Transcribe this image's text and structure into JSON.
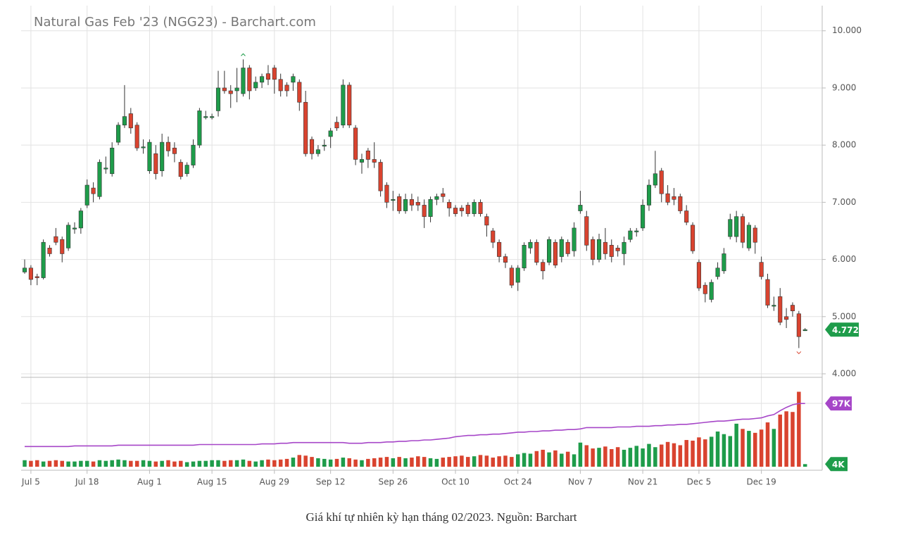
{
  "chart_data": {
    "type": "candlestick",
    "title": "Natural Gas Feb '23 (NGG23) - Barchart.com",
    "xlim": [
      -3.95,
      127.4
    ],
    "xticks": [
      {
        "value": 1,
        "label": "Jul 5"
      },
      {
        "value": 10,
        "label": "Jul 18"
      },
      {
        "value": 20,
        "label": "Aug 1"
      },
      {
        "value": 30,
        "label": "Aug 15"
      },
      {
        "value": 40,
        "label": "Aug 29"
      },
      {
        "value": 49,
        "label": "Sep 12"
      },
      {
        "value": 59,
        "label": "Sep 26"
      },
      {
        "value": 69,
        "label": "Oct 10"
      },
      {
        "value": 79,
        "label": "Oct 24"
      },
      {
        "value": 89,
        "label": "Nov 7"
      },
      {
        "value": 99,
        "label": "Nov 21"
      },
      {
        "value": 108,
        "label": "Dec 5"
      },
      {
        "value": 118,
        "label": "Dec 19"
      }
    ],
    "ylim": [
      4,
      10.44
    ],
    "yticks": [
      {
        "value": 4,
        "label": "4.000"
      },
      {
        "value": 5,
        "label": "5.000"
      },
      {
        "value": 6,
        "label": "6.000"
      },
      {
        "value": 7,
        "label": "7.000"
      },
      {
        "value": 8,
        "label": "8.000"
      },
      {
        "value": 9,
        "label": "9.000"
      },
      {
        "value": 10,
        "label": "10.000"
      }
    ],
    "grid": true,
    "up_color": "#1e9c4a",
    "down_color": "#d9432f",
    "open": [
      5.78,
      5.85,
      5.7,
      5.68,
      6.2,
      6.4,
      6.35,
      6.2,
      6.55,
      6.55,
      6.95,
      7.25,
      7.1,
      7.6,
      7.5,
      8.05,
      8.35,
      8.55,
      8.35,
      7.97,
      7.55,
      7.85,
      7.55,
      8.05,
      7.95,
      7.7,
      7.5,
      7.65,
      8.0,
      8.5,
      8.5,
      8.6,
      9.0,
      8.95,
      8.95,
      8.9,
      9.35,
      9.0,
      9.1,
      9.25,
      9.35,
      9.15,
      9.05,
      9.1,
      9.1,
      8.75,
      8.1,
      7.85,
      8.0,
      8.15,
      8.4,
      8.35,
      9.05,
      8.3,
      7.7,
      7.9,
      7.75,
      7.7,
      7.3,
      7.05,
      7.1,
      6.85,
      7.05,
      7.0,
      6.95,
      6.75,
      7.05,
      7.15,
      7.0,
      6.9,
      6.9,
      6.95,
      6.8,
      7.0,
      6.75,
      6.5,
      6.3,
      6.05,
      5.85,
      5.6,
      5.85,
      6.2,
      6.3,
      5.95,
      5.95,
      6.3,
      6.05,
      6.3,
      6.15,
      6.85,
      6.75,
      6.35,
      6.0,
      6.3,
      6.25,
      6.2,
      6.1,
      6.35,
      6.5,
      6.55,
      6.95,
      7.3,
      7.55,
      7.15,
      7.1,
      7.1,
      6.85,
      6.6,
      5.95,
      5.55,
      5.3,
      5.7,
      5.8,
      6.4,
      6.4,
      6.75,
      6.2,
      6.55,
      5.95,
      5.65,
      5.2,
      5.35,
      5.0,
      5.2,
      5.05,
      4.772
    ],
    "high": [
      6.0,
      5.9,
      5.75,
      6.35,
      6.25,
      6.55,
      6.4,
      6.65,
      6.65,
      6.9,
      7.4,
      7.35,
      7.75,
      7.8,
      8.05,
      8.4,
      9.05,
      8.65,
      8.4,
      8.1,
      8.1,
      8.0,
      8.2,
      8.15,
      8.05,
      7.75,
      7.7,
      8.1,
      8.65,
      8.6,
      8.55,
      9.3,
      9.3,
      9.05,
      9.35,
      9.5,
      9.4,
      9.2,
      9.25,
      9.4,
      9.4,
      9.25,
      9.1,
      9.25,
      9.15,
      8.95,
      8.15,
      8.0,
      8.1,
      8.3,
      8.5,
      9.15,
      9.1,
      8.35,
      7.85,
      7.95,
      8.05,
      7.75,
      7.35,
      7.2,
      7.15,
      7.15,
      7.15,
      7.1,
      7.05,
      7.1,
      7.15,
      7.25,
      7.05,
      6.95,
      6.95,
      7.0,
      7.05,
      7.05,
      6.8,
      6.55,
      6.35,
      6.1,
      5.9,
      5.9,
      6.3,
      6.35,
      6.35,
      6.0,
      6.4,
      6.35,
      6.4,
      6.35,
      6.65,
      7.2,
      6.85,
      6.4,
      6.45,
      6.55,
      6.35,
      6.25,
      6.4,
      6.55,
      6.55,
      7.05,
      7.4,
      7.9,
      7.6,
      7.3,
      7.25,
      7.15,
      6.95,
      6.65,
      6.0,
      5.6,
      5.65,
      5.95,
      6.2,
      6.8,
      6.85,
      6.8,
      6.65,
      6.6,
      6.05,
      5.75,
      5.35,
      5.5,
      5.15,
      5.25,
      5.1,
      4.8
    ],
    "low": [
      5.75,
      5.55,
      5.55,
      5.65,
      6.05,
      6.25,
      5.95,
      6.15,
      6.45,
      6.45,
      6.9,
      7.0,
      7.05,
      7.5,
      7.45,
      8.0,
      8.3,
      8.2,
      7.9,
      7.85,
      7.5,
      7.4,
      7.45,
      7.8,
      7.7,
      7.4,
      7.45,
      7.6,
      7.95,
      8.45,
      8.45,
      8.5,
      8.9,
      8.65,
      8.75,
      8.85,
      8.8,
      8.95,
      9.0,
      9.05,
      8.9,
      8.85,
      8.85,
      8.95,
      8.6,
      7.8,
      7.75,
      7.8,
      7.9,
      7.95,
      8.25,
      8.3,
      8.3,
      7.65,
      7.5,
      7.6,
      7.6,
      7.1,
      6.9,
      6.85,
      6.8,
      6.8,
      6.85,
      6.85,
      6.55,
      6.65,
      6.95,
      7.0,
      6.75,
      6.75,
      6.75,
      6.75,
      6.75,
      6.75,
      6.4,
      6.2,
      5.95,
      5.85,
      5.5,
      5.45,
      5.8,
      6.1,
      5.9,
      5.65,
      5.9,
      5.85,
      5.95,
      6.05,
      6.05,
      6.8,
      6.15,
      5.9,
      5.95,
      6.0,
      5.95,
      6.05,
      5.9,
      6.3,
      6.4,
      6.5,
      6.85,
      7.25,
      7.0,
      6.95,
      6.95,
      6.8,
      6.6,
      6.1,
      5.45,
      5.25,
      5.25,
      5.65,
      5.75,
      6.35,
      6.3,
      6.2,
      6.15,
      6.1,
      5.65,
      5.15,
      5.1,
      4.85,
      4.8,
      5.0,
      4.45,
      4.75
    ],
    "close": [
      5.85,
      5.65,
      5.68,
      6.3,
      6.1,
      6.3,
      6.1,
      6.6,
      6.55,
      6.85,
      7.3,
      7.15,
      7.7,
      7.6,
      7.95,
      8.35,
      8.5,
      8.3,
      7.95,
      7.97,
      8.05,
      7.5,
      8.05,
      7.9,
      7.85,
      7.45,
      7.65,
      8.0,
      8.6,
      8.5,
      8.5,
      9.0,
      8.95,
      8.9,
      9.0,
      9.35,
      8.95,
      9.1,
      9.2,
      9.15,
      9.15,
      8.95,
      8.95,
      9.2,
      8.75,
      7.85,
      7.85,
      7.92,
      8.0,
      8.25,
      8.3,
      9.05,
      8.35,
      7.75,
      7.75,
      7.75,
      7.7,
      7.2,
      7.0,
      7.05,
      6.85,
      7.05,
      6.95,
      6.95,
      6.75,
      7.05,
      7.1,
      7.1,
      6.9,
      6.8,
      6.85,
      6.8,
      7.0,
      6.8,
      6.6,
      6.3,
      6.05,
      5.95,
      5.55,
      5.85,
      6.25,
      6.3,
      5.95,
      5.8,
      6.35,
      5.9,
      6.35,
      6.1,
      6.55,
      6.95,
      6.25,
      6.0,
      6.35,
      6.1,
      6.05,
      6.15,
      6.3,
      6.5,
      6.5,
      6.95,
      7.3,
      7.5,
      7.15,
      7.0,
      7.05,
      6.85,
      6.65,
      6.15,
      5.5,
      5.4,
      5.6,
      5.85,
      6.1,
      6.7,
      6.75,
      6.3,
      6.6,
      6.3,
      5.7,
      5.2,
      5.2,
      4.9,
      4.95,
      5.1,
      4.65,
      4.772
    ],
    "price_badge": {
      "value": 4.772,
      "label": "4.772"
    },
    "volume": {
      "ylim": [
        0,
        135
      ],
      "values": [
        10,
        9,
        10,
        8,
        9,
        10,
        9,
        8,
        8,
        9,
        9,
        8,
        10,
        9,
        10,
        11,
        10,
        9,
        9,
        10,
        9,
        8,
        9,
        10,
        8,
        9,
        7,
        8,
        9,
        9,
        10,
        10,
        9,
        10,
        10,
        11,
        9,
        8,
        10,
        11,
        10,
        11,
        12,
        14,
        18,
        17,
        15,
        13,
        12,
        11,
        12,
        14,
        13,
        11,
        10,
        12,
        13,
        14,
        15,
        13,
        15,
        13,
        14,
        16,
        15,
        13,
        12,
        14,
        15,
        16,
        17,
        15,
        16,
        18,
        17,
        14,
        16,
        17,
        15,
        19,
        21,
        20,
        24,
        26,
        22,
        25,
        20,
        23,
        19,
        37,
        33,
        28,
        29,
        31,
        27,
        30,
        26,
        29,
        32,
        28,
        35,
        30,
        34,
        38,
        36,
        33,
        41,
        40,
        45,
        42,
        46,
        54,
        50,
        47,
        66,
        58,
        55,
        52,
        57,
        68,
        58,
        80,
        85,
        84,
        115,
        4
      ],
      "ma": [
        31,
        31,
        31,
        31,
        31,
        31,
        31,
        31,
        32,
        32,
        32,
        32,
        32,
        32,
        32,
        33,
        33,
        33,
        33,
        33,
        33,
        33,
        33,
        33,
        33,
        33,
        33,
        33,
        34,
        34,
        34,
        34,
        34,
        34,
        34,
        34,
        34,
        34,
        35,
        35,
        35,
        36,
        36,
        37,
        37,
        37,
        37,
        37,
        37,
        37,
        37,
        37,
        36,
        36,
        36,
        37,
        37,
        37,
        38,
        38,
        39,
        39,
        40,
        40,
        41,
        41,
        42,
        43,
        44,
        46,
        47,
        48,
        48,
        49,
        49,
        50,
        50,
        51,
        52,
        53,
        53,
        54,
        54,
        55,
        55,
        56,
        56,
        57,
        57,
        58,
        60,
        60,
        60,
        60,
        60,
        61,
        61,
        61,
        62,
        62,
        62,
        63,
        63,
        64,
        64,
        65,
        65,
        66,
        67,
        68,
        69,
        70,
        70,
        71,
        72,
        73,
        73,
        74,
        75,
        78,
        80,
        86,
        91,
        95,
        97,
        97
      ],
      "ma_color": "#a646c8",
      "ma_badge": {
        "value": 97,
        "label": "97K"
      },
      "volume_badge": {
        "value": 4,
        "label": "4K"
      }
    }
  },
  "caption": "Giá khí tự nhiên kỳ hạn tháng 02/2023. Nguồn: Barchart"
}
